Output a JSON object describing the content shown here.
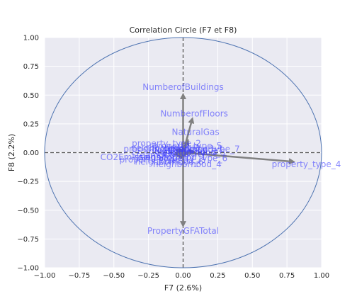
{
  "chart_data": {
    "type": "scatter",
    "title": "Correlation Circle (F7 et F8)",
    "xlabel": "F7 (2.6%)",
    "ylabel": "F8 (2.2%)",
    "xlim": [
      -1.0,
      1.0
    ],
    "ylim": [
      -1.0,
      1.0
    ],
    "xticks": [
      "−1.00",
      "−0.75",
      "−0.50",
      "−0.25",
      "0.00",
      "0.25",
      "0.50",
      "0.75",
      "1.00"
    ],
    "yticks": [
      "−1.00",
      "−0.75",
      "−0.50",
      "−0.25",
      "0.00",
      "0.25",
      "0.50",
      "0.75",
      "1.00"
    ],
    "grid": true,
    "colors": {
      "background": "#eaeaf2",
      "grid": "#ffffff",
      "circle": "#4c72b0",
      "arrow": "#808080",
      "label": "#3b3bff",
      "dashed": "#555555"
    },
    "vectors": [
      {
        "name": "NumberofBuildings",
        "x": 0.0,
        "y": 0.52,
        "lx": 0.0,
        "ly": 0.57
      },
      {
        "name": "NumberofFloors",
        "x": 0.07,
        "y": 0.31,
        "lx": 0.08,
        "ly": 0.34
      },
      {
        "name": "NaturalGas",
        "x": 0.04,
        "y": 0.12,
        "lx": 0.09,
        "ly": 0.18
      },
      {
        "name": "property_type_4",
        "x": 0.81,
        "y": -0.08,
        "lx": 0.89,
        "ly": -0.1
      },
      {
        "name": "PropertyGFATotal",
        "x": 0.0,
        "y": -0.65,
        "lx": 0.0,
        "ly": -0.68
      },
      {
        "name": "neighborhood_4",
        "x": -0.03,
        "y": -0.05,
        "lx": 0.03,
        "ly": -0.1
      },
      {
        "name": "property_type_5",
        "x": 0.01,
        "y": 0.05,
        "lx": 0.03,
        "ly": 0.06
      },
      {
        "name": "property_type_2",
        "x": -0.03,
        "y": 0.04,
        "lx": -0.12,
        "ly": 0.08
      },
      {
        "name": "property_type_7",
        "x": 0.09,
        "y": 0.01,
        "lx": 0.16,
        "ly": 0.03
      },
      {
        "name": "neighborhood_3",
        "x": -0.04,
        "y": 0.02,
        "lx": -0.13,
        "ly": 0.04
      },
      {
        "name": "property_type_1",
        "x": -0.06,
        "y": 0.03,
        "lx": -0.18,
        "ly": 0.03
      },
      {
        "name": "neighborhood_7",
        "x": 0.04,
        "y": -0.02,
        "lx": 0.04,
        "ly": 0.03
      },
      {
        "name": "neighborhood_2",
        "x": -0.01,
        "y": -0.02,
        "lx": 0.0,
        "ly": 0.01
      },
      {
        "name": "property_type_3",
        "x": -0.05,
        "y": -0.04,
        "lx": -0.21,
        "ly": -0.06
      },
      {
        "name": "neighborhood_6",
        "x": -0.02,
        "y": -0.06,
        "lx": -0.1,
        "ly": -0.08
      },
      {
        "name": "CO2Emissions",
        "x": -0.07,
        "y": -0.02,
        "lx": -0.38,
        "ly": -0.04
      },
      {
        "name": "SteamUse",
        "x": -0.02,
        "y": -0.01,
        "lx": -0.22,
        "ly": -0.02
      },
      {
        "name": "Electricity",
        "x": 0.02,
        "y": -0.01,
        "lx": 0.01,
        "ly": -0.01
      },
      {
        "name": "neighborhood_5",
        "x": 0.03,
        "y": 0.0,
        "lx": 0.06,
        "ly": 0.0
      },
      {
        "name": "neighborhood_1",
        "x": -0.02,
        "y": -0.03,
        "lx": -0.08,
        "ly": -0.04
      },
      {
        "name": "property_type_6",
        "x": 0.02,
        "y": -0.03,
        "lx": 0.07,
        "ly": -0.05
      }
    ]
  }
}
